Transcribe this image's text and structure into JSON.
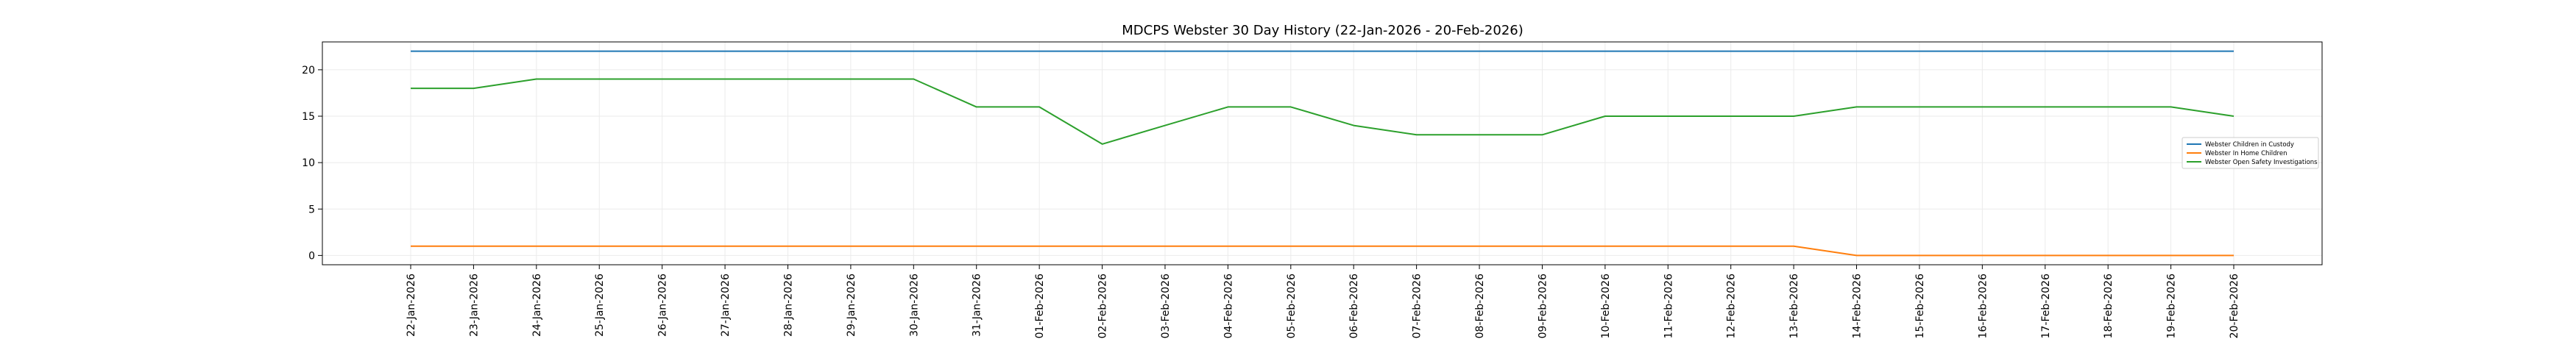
{
  "chart_data": {
    "type": "line",
    "title": "MDCPS Webster 30 Day History (22-Jan-2026 - 20-Feb-2026)",
    "xlabel": "",
    "ylabel": "",
    "ylim": [
      -1,
      23
    ],
    "yticks": [
      0,
      5,
      10,
      15,
      20
    ],
    "grid": true,
    "legend_position": "right",
    "categories": [
      "22-Jan-2026",
      "23-Jan-2026",
      "24-Jan-2026",
      "25-Jan-2026",
      "26-Jan-2026",
      "27-Jan-2026",
      "28-Jan-2026",
      "29-Jan-2026",
      "30-Jan-2026",
      "31-Jan-2026",
      "01-Feb-2026",
      "02-Feb-2026",
      "03-Feb-2026",
      "04-Feb-2026",
      "05-Feb-2026",
      "06-Feb-2026",
      "07-Feb-2026",
      "08-Feb-2026",
      "09-Feb-2026",
      "10-Feb-2026",
      "11-Feb-2026",
      "12-Feb-2026",
      "13-Feb-2026",
      "14-Feb-2026",
      "15-Feb-2026",
      "16-Feb-2026",
      "17-Feb-2026",
      "18-Feb-2026",
      "19-Feb-2026",
      "20-Feb-2026"
    ],
    "series": [
      {
        "name": "Webster Children in Custody",
        "color": "#1f77b4",
        "values": [
          22,
          22,
          22,
          22,
          22,
          22,
          22,
          22,
          22,
          22,
          22,
          22,
          22,
          22,
          22,
          22,
          22,
          22,
          22,
          22,
          22,
          22,
          22,
          22,
          22,
          22,
          22,
          22,
          22,
          22
        ]
      },
      {
        "name": "Webster In Home Children",
        "color": "#ff7f0e",
        "values": [
          1,
          1,
          1,
          1,
          1,
          1,
          1,
          1,
          1,
          1,
          1,
          1,
          1,
          1,
          1,
          1,
          1,
          1,
          1,
          1,
          1,
          1,
          1,
          0,
          0,
          0,
          0,
          0,
          0,
          0
        ]
      },
      {
        "name": "Webster Open Safety Investigations",
        "color": "#2ca02c",
        "values": [
          18,
          18,
          19,
          19,
          19,
          19,
          19,
          19,
          19,
          16,
          16,
          12,
          14,
          16,
          16,
          14,
          13,
          13,
          13,
          15,
          15,
          15,
          15,
          16,
          16,
          16,
          16,
          16,
          16,
          15
        ]
      }
    ]
  }
}
